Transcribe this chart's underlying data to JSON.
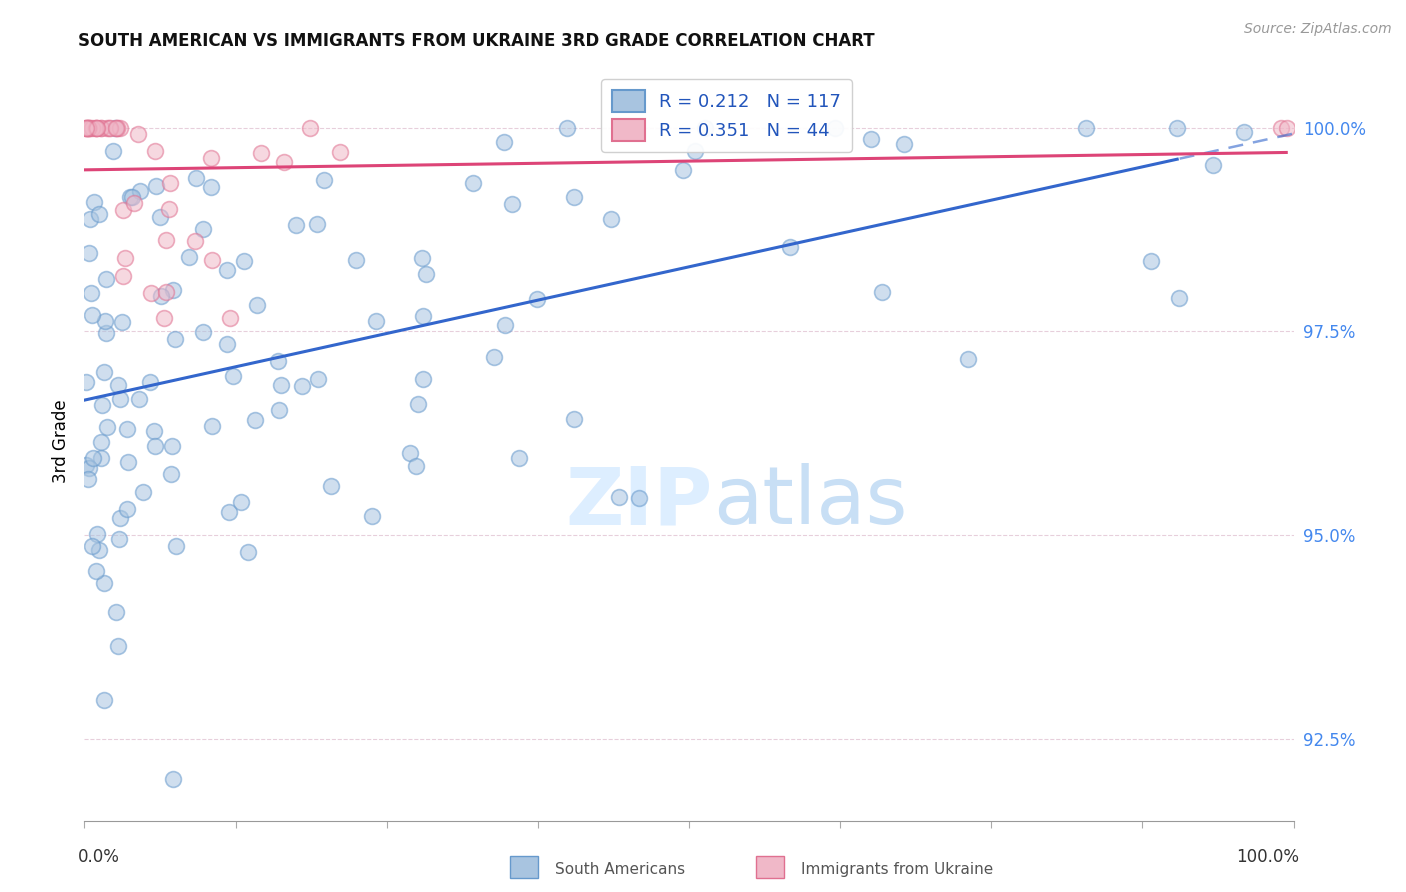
{
  "title": "SOUTH AMERICAN VS IMMIGRANTS FROM UKRAINE 3RD GRADE CORRELATION CHART",
  "source": "Source: ZipAtlas.com",
  "ylabel": "3rd Grade",
  "xlim": [
    0.0,
    100.0
  ],
  "ylim": [
    91.5,
    100.8
  ],
  "y_ticks": [
    92.5,
    95.0,
    97.5,
    100.0
  ],
  "y_tick_labels": [
    "92.5%",
    "95.0%",
    "97.5%",
    "100.0%"
  ],
  "R_blue": 0.212,
  "N_blue": 117,
  "R_pink": 0.351,
  "N_pink": 44,
  "blue_color": "#a8c4e0",
  "blue_edge": "#6699cc",
  "pink_color": "#f0b8c8",
  "pink_edge": "#e07090",
  "line_blue": "#3366cc",
  "line_pink": "#dd4477",
  "legend_color": "#2255bb",
  "watermark_color": "#ddeeff",
  "grid_color": "#ddddee",
  "seed_blue": 42,
  "seed_pink": 99
}
